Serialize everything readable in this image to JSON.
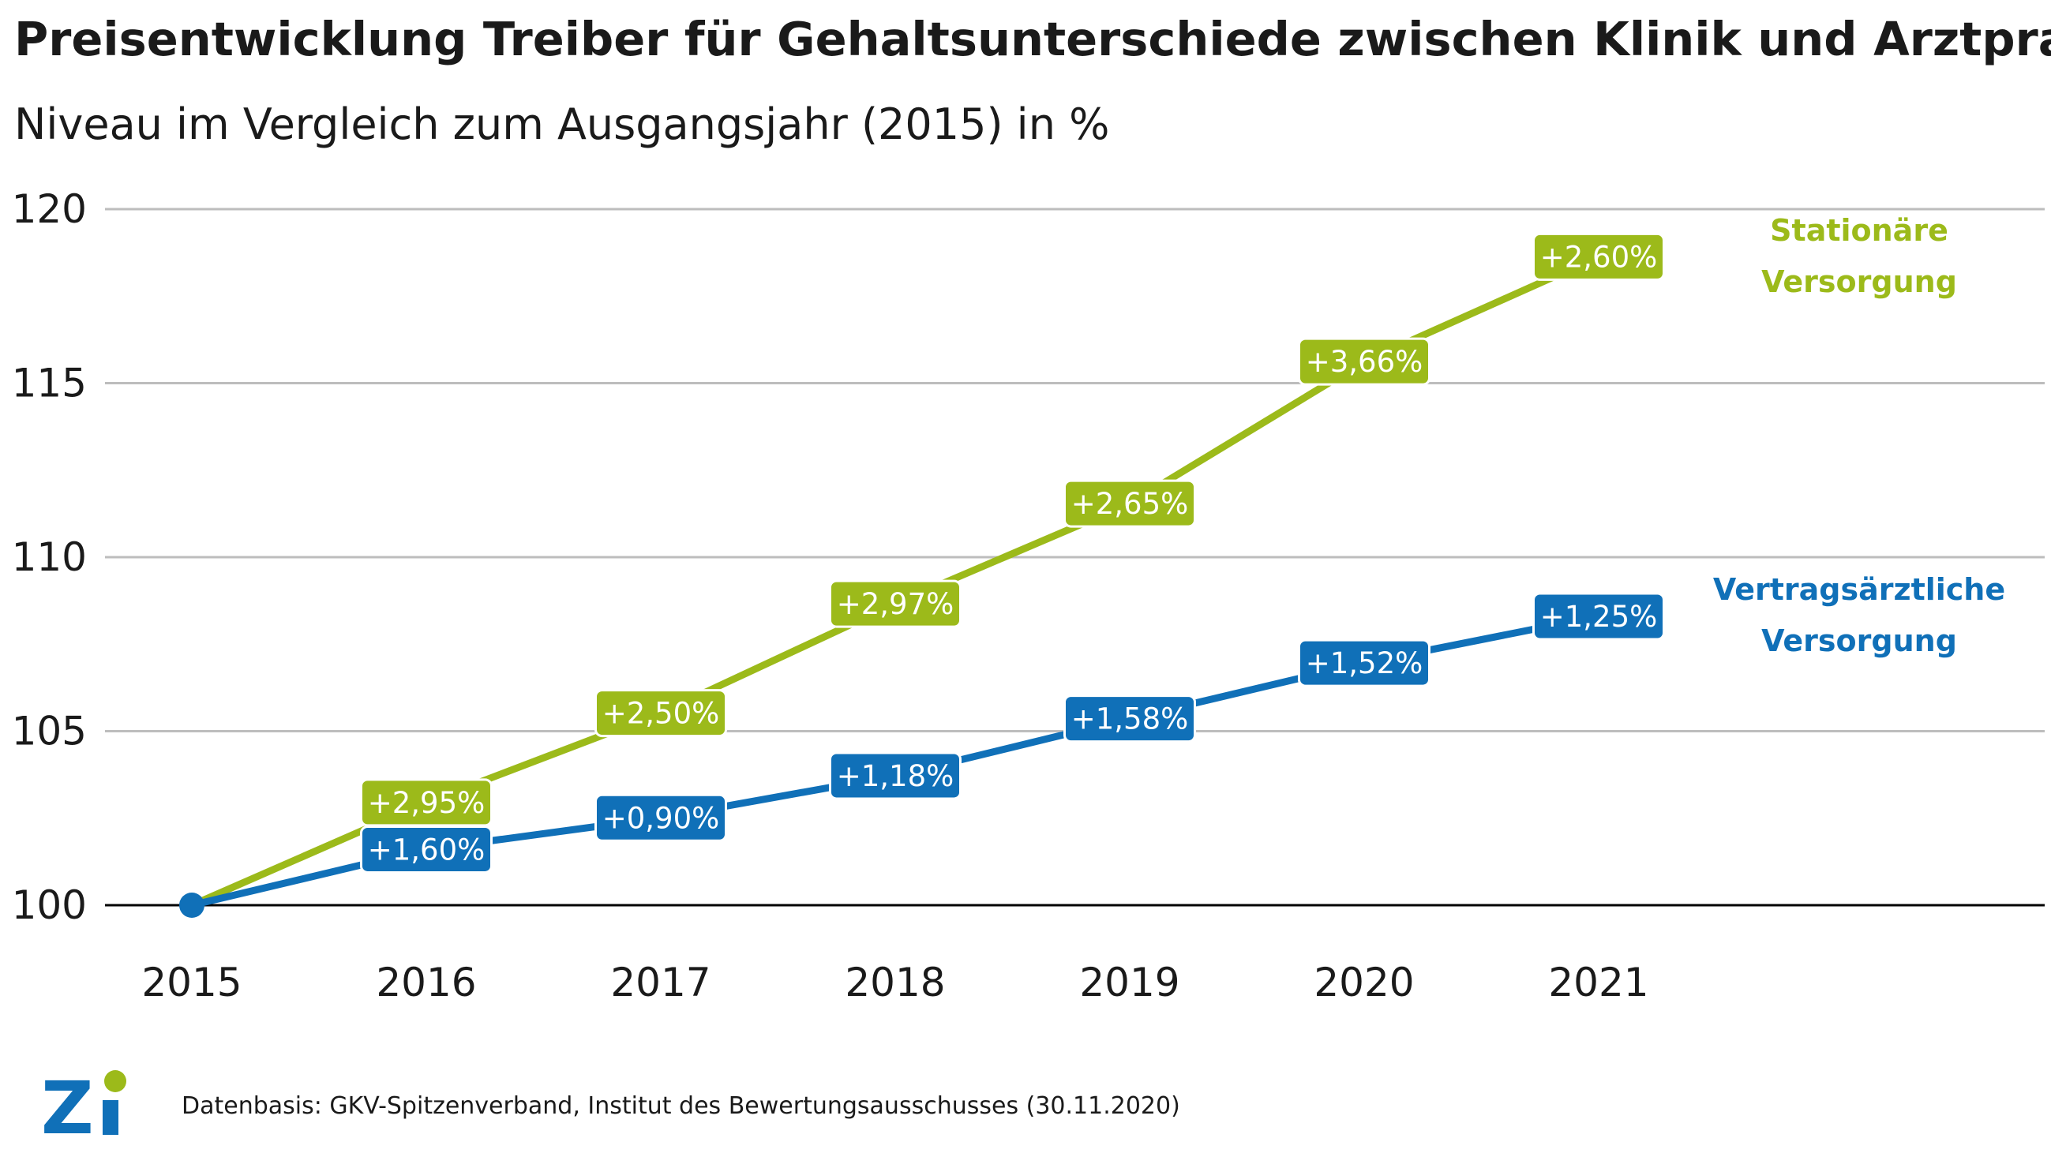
{
  "title": "Preisentwicklung Treiber für Gehaltsunterschiede zwischen Klinik und Arztpraxis",
  "subtitle": "Niveau im Vergleich zum Ausgangsjahr (2015) in %",
  "source": "Datenbasis: GKV-Spitzenverband, Institut des Bewertungsausschusses (30.11.2020)",
  "logo": {
    "text": "Zi"
  },
  "colors": {
    "stationaer": "#9CBA1A",
    "vertrag": "#1070B8",
    "grid": "#BDBDBD",
    "baseline": "#000000"
  },
  "chart_data": {
    "type": "line",
    "title": "Preisentwicklung Treiber für Gehaltsunterschiede zwischen Klinik und Arztpraxis",
    "subtitle": "Niveau im Vergleich zum Ausgangsjahr (2015) in %",
    "x": [
      "2015",
      "2016",
      "2017",
      "2018",
      "2019",
      "2020",
      "2021"
    ],
    "ylim": [
      100,
      120
    ],
    "yticks": [
      100,
      105,
      110,
      115,
      120
    ],
    "grid": true,
    "series": [
      {
        "name": "Stationäre Versorgung",
        "label_lines": [
          "Stationäre",
          "Versorgung"
        ],
        "color": "#9CBA1A",
        "values": [
          100,
          102.95,
          105.52,
          108.66,
          111.54,
          115.62,
          118.63
        ],
        "labels": [
          "",
          "+2,95%",
          "+2,50%",
          "+2,97%",
          "+2,65%",
          "+3,66%",
          "+2,60%"
        ]
      },
      {
        "name": "Vertragsärztliche Versorgung",
        "label_lines": [
          "Vertragsärztliche",
          "Versorgung"
        ],
        "color": "#1070B8",
        "values": [
          100,
          101.6,
          102.51,
          103.72,
          105.36,
          106.96,
          108.3
        ],
        "labels": [
          "",
          "+1,60%",
          "+0,90%",
          "+1,18%",
          "+1,58%",
          "+1,52%",
          "+1,25%"
        ]
      }
    ],
    "start_point": {
      "x": "2015",
      "y": 100
    }
  }
}
